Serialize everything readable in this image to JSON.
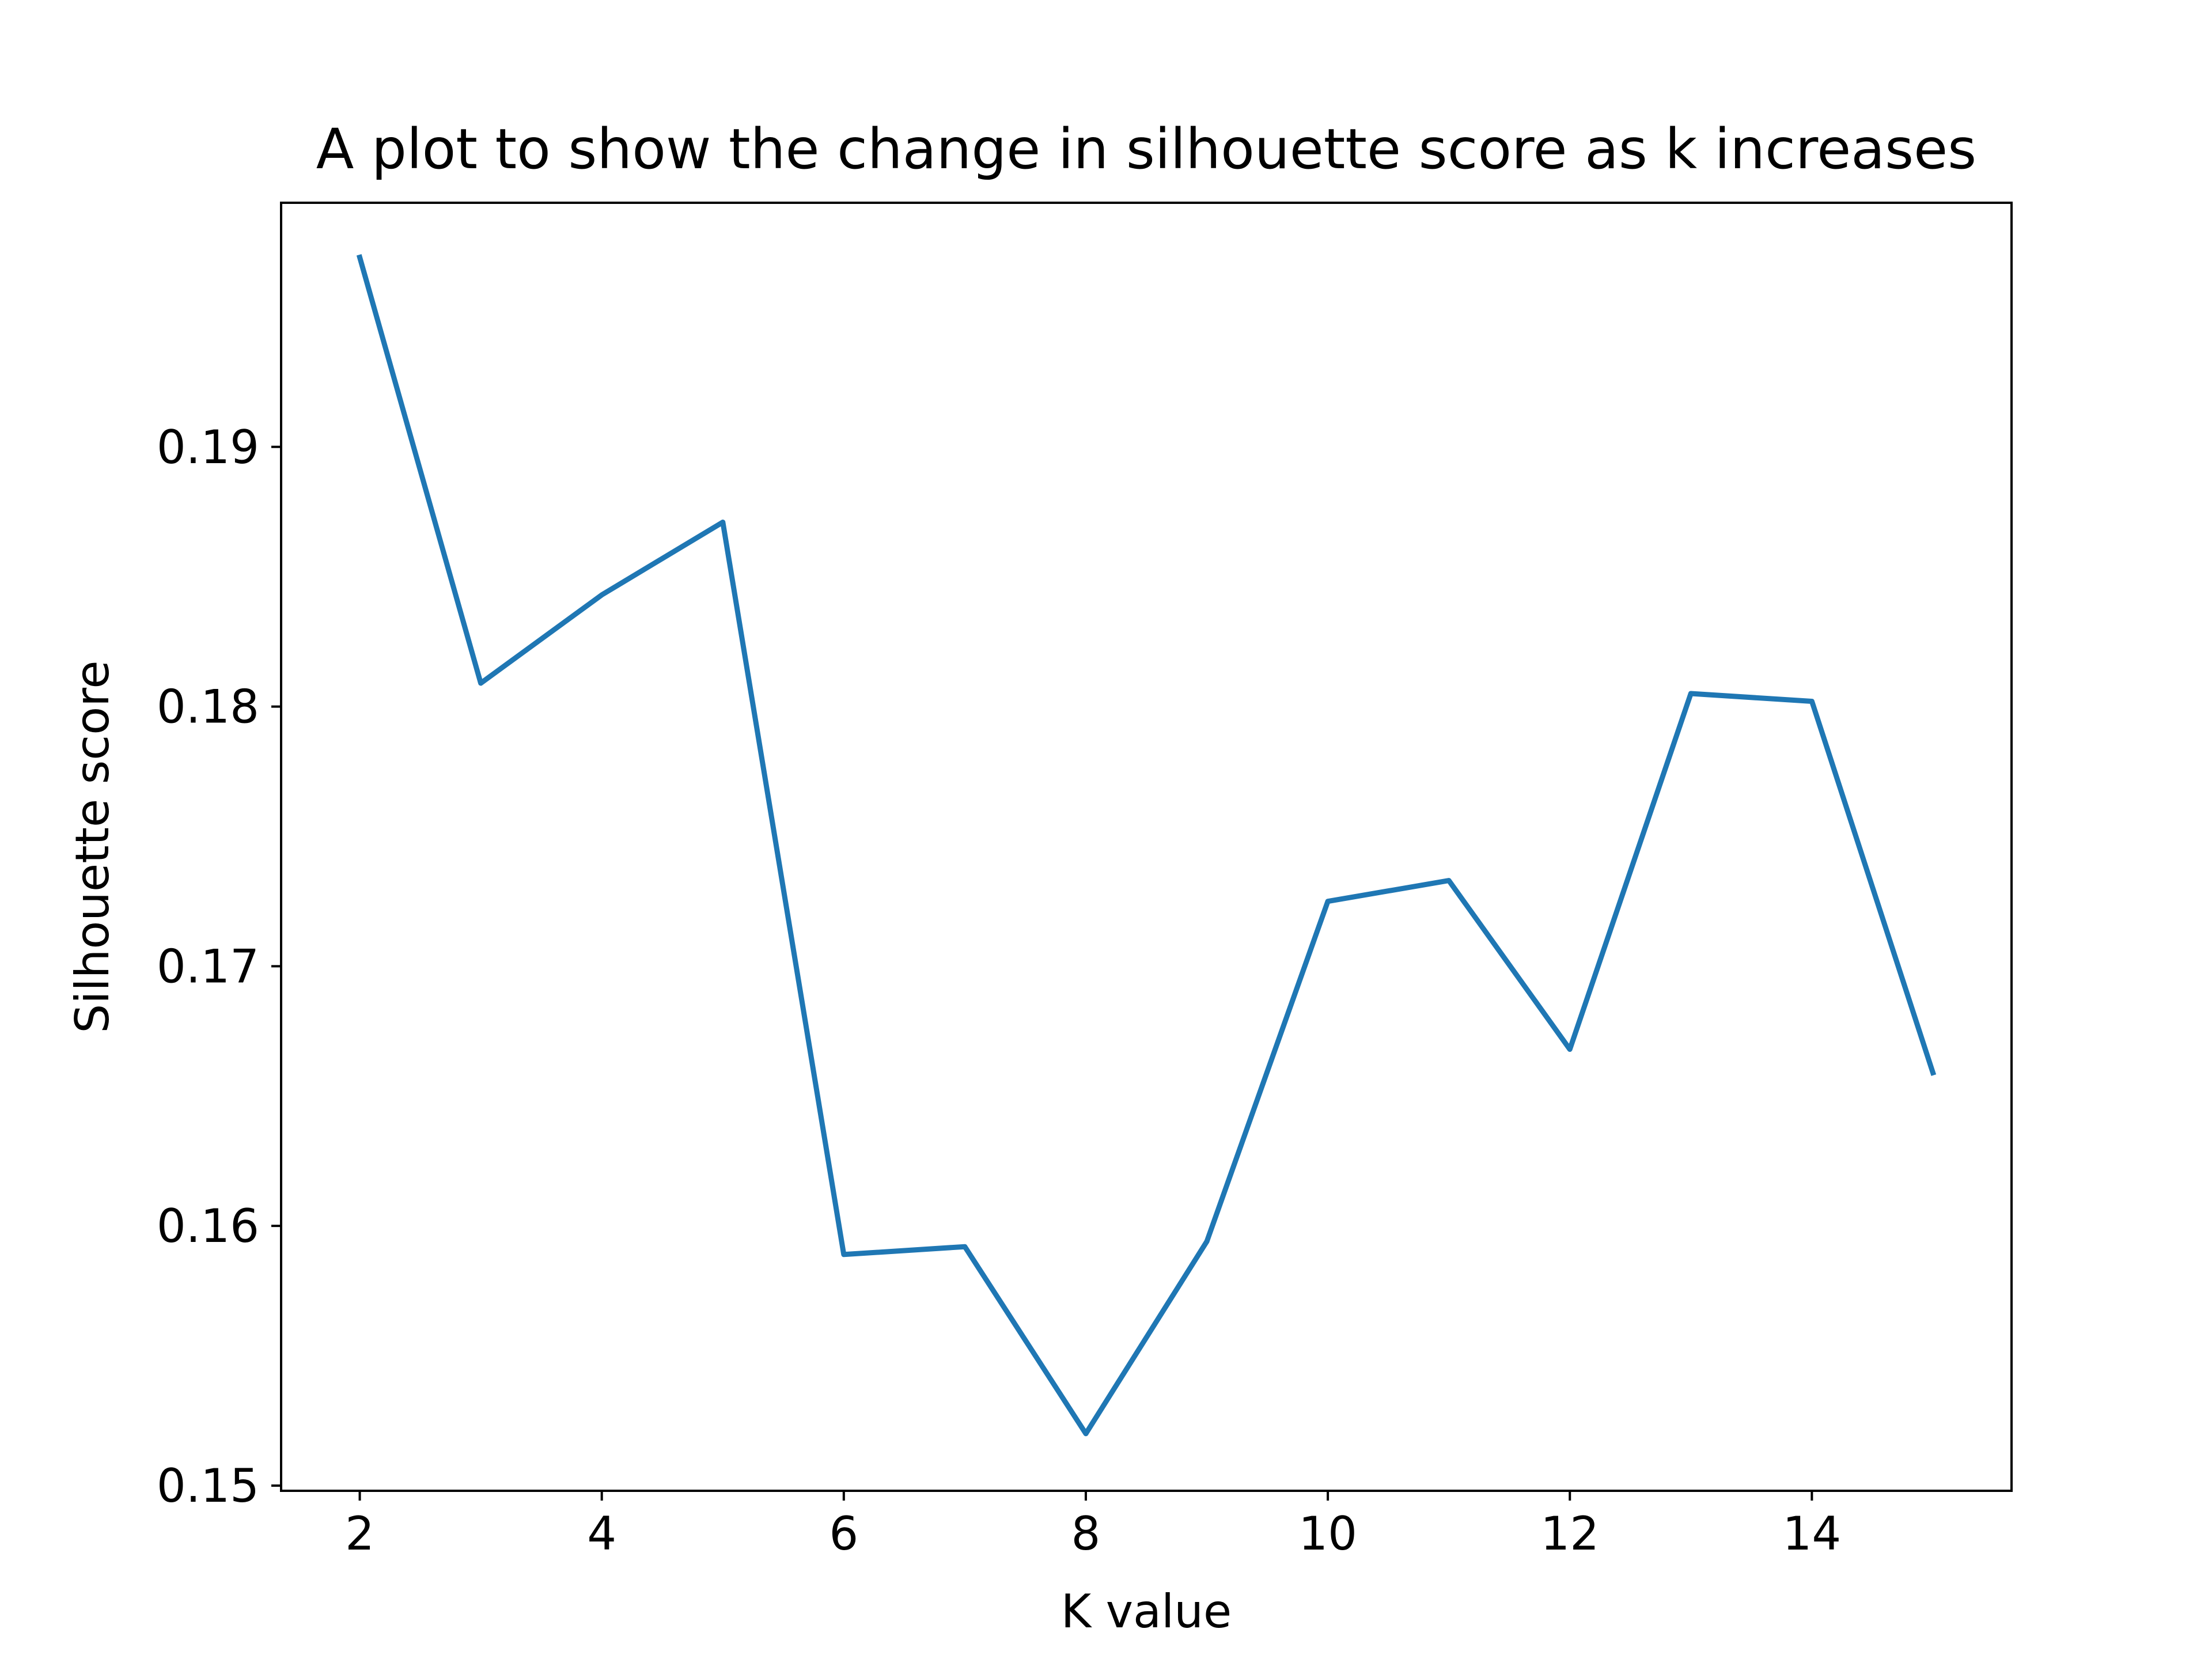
{
  "chart_data": {
    "type": "line",
    "title": "A plot to show the change in silhouette score as k increases",
    "xlabel": "K value",
    "ylabel": "Silhouette score",
    "x": [
      2,
      3,
      4,
      5,
      6,
      7,
      8,
      9,
      10,
      11,
      12,
      13,
      14,
      15
    ],
    "series": [
      {
        "values": [
          0.1973,
          0.1809,
          0.1843,
          0.1871,
          0.1589,
          0.1592,
          0.152,
          0.1594,
          0.1725,
          0.1733,
          0.1668,
          0.1805,
          0.1802,
          0.1659
        ],
        "color": "#1f77b4"
      }
    ],
    "xlim": [
      1.35,
      15.65
    ],
    "ylim": [
      0.1498,
      0.1994
    ],
    "xticks": [
      2,
      4,
      6,
      8,
      10,
      12,
      14
    ],
    "xtick_labels": [
      "2",
      "4",
      "6",
      "8",
      "10",
      "12",
      "14"
    ],
    "yticks": [
      0.15,
      0.16,
      0.17,
      0.18,
      0.19
    ],
    "ytick_labels": [
      "0.15",
      "0.16",
      "0.17",
      "0.18",
      "0.19"
    ],
    "grid": false,
    "legend": "none"
  }
}
